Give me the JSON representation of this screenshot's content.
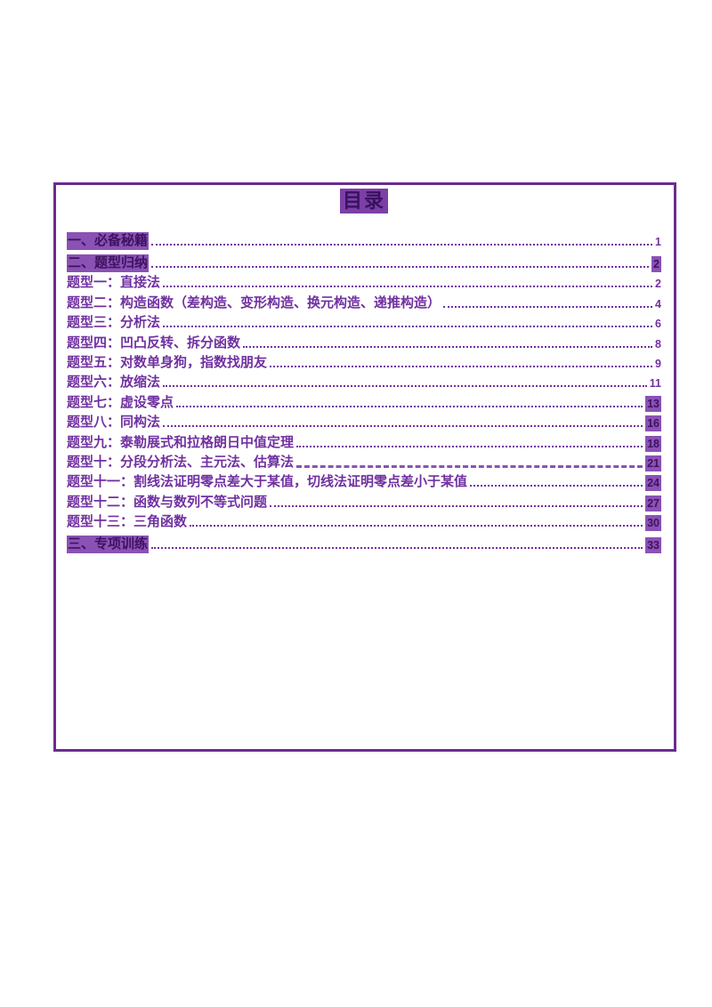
{
  "accent_color": "#7030a0",
  "border_color": "#6a2c91",
  "highlight_color": "#8a52b5",
  "toc": {
    "title": "目录",
    "items": [
      {
        "label": "一、必备秘籍",
        "page": "1",
        "text_highlight": true,
        "page_highlight": false,
        "leader_highlight": false,
        "section": true
      },
      {
        "label": "二、题型归纳",
        "page": "2",
        "text_highlight": true,
        "page_highlight": true,
        "leader_highlight": false,
        "section": true
      },
      {
        "label": "题型一：直接法",
        "page": "2",
        "text_highlight": false,
        "page_highlight": false,
        "leader_highlight": false,
        "section": false
      },
      {
        "label": "题型二：构造函数（差构造、变形构造、换元构造、递推构造）",
        "page": "4",
        "text_highlight": false,
        "page_highlight": false,
        "leader_highlight": false,
        "section": false
      },
      {
        "label": "题型三：分析法",
        "page": "6",
        "text_highlight": false,
        "page_highlight": false,
        "leader_highlight": false,
        "section": false
      },
      {
        "label": "题型四：凹凸反转、拆分函数",
        "page": "8",
        "text_highlight": false,
        "page_highlight": false,
        "leader_highlight": false,
        "section": false
      },
      {
        "label": "题型五：对数单身狗，指数找朋友",
        "page": "9",
        "text_highlight": false,
        "page_highlight": false,
        "leader_highlight": false,
        "section": false
      },
      {
        "label": "题型六：放缩法",
        "page": "11",
        "text_highlight": false,
        "page_highlight": false,
        "leader_highlight": false,
        "section": false
      },
      {
        "label": "题型七：虚设零点",
        "page": "13",
        "text_highlight": false,
        "page_highlight": true,
        "leader_highlight": false,
        "section": false
      },
      {
        "label": "题型八：同构法",
        "page": "16",
        "text_highlight": false,
        "page_highlight": true,
        "leader_highlight": false,
        "section": false
      },
      {
        "label": "题型九：泰勒展式和拉格朗日中值定理",
        "page": "18",
        "text_highlight": false,
        "page_highlight": true,
        "leader_highlight": false,
        "section": false
      },
      {
        "label": "题型十：分段分析法、主元法、估算法",
        "page": "21",
        "text_highlight": false,
        "page_highlight": true,
        "leader_highlight": true,
        "section": false
      },
      {
        "label": "题型十一：割线法证明零点差大于某值，切线法证明零点差小于某值",
        "page": "24",
        "text_highlight": false,
        "page_highlight": true,
        "leader_highlight": false,
        "section": false
      },
      {
        "label": "题型十二：函数与数列不等式问题",
        "page": "27",
        "text_highlight": false,
        "page_highlight": true,
        "leader_highlight": false,
        "section": false
      },
      {
        "label": "题型十三：三角函数",
        "page": "30",
        "text_highlight": false,
        "page_highlight": true,
        "leader_highlight": false,
        "section": false
      },
      {
        "label": "三、专项训练",
        "page": "33",
        "text_highlight": true,
        "page_highlight": true,
        "leader_highlight": false,
        "section": true
      }
    ]
  }
}
